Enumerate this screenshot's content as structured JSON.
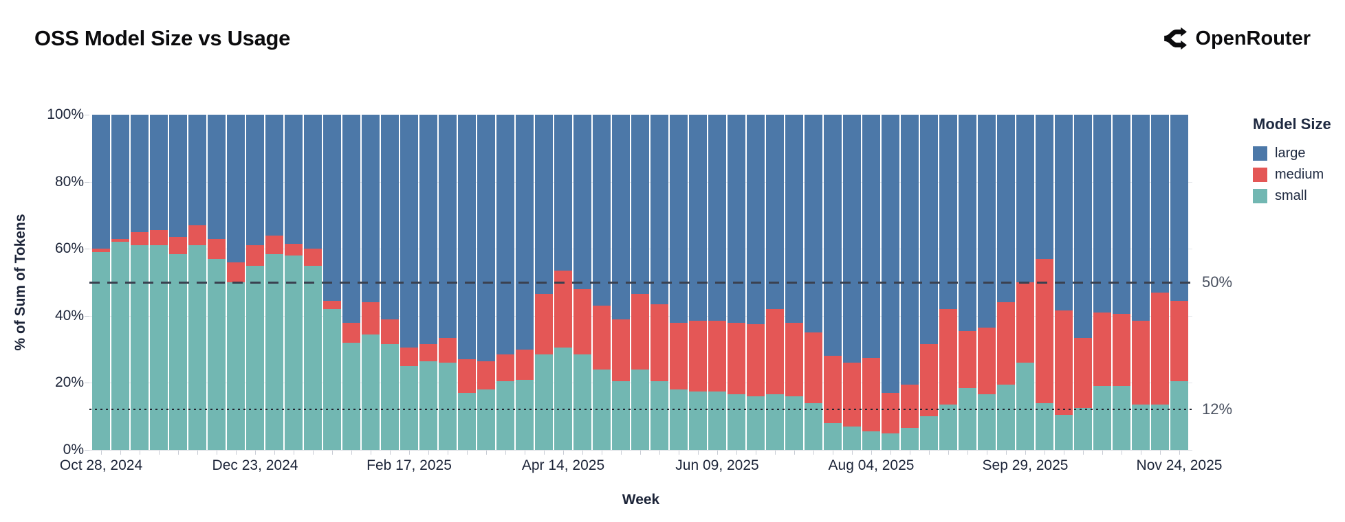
{
  "header": {
    "title": "OSS Model Size vs Usage",
    "brand": "OpenRouter"
  },
  "chart_data": {
    "type": "bar",
    "stacked": true,
    "normalized_percent": true,
    "title": "OSS Model Size vs Usage",
    "xlabel": "Week",
    "ylabel": "% of Sum of Tokens",
    "ylim": [
      0,
      100
    ],
    "grid": true,
    "y_ticks": [
      0,
      20,
      40,
      60,
      80,
      100
    ],
    "y_tick_suffix": "%",
    "x_label_every": 8,
    "x": [
      "Oct 28, 2024",
      "Nov 04, 2024",
      "Nov 11, 2024",
      "Nov 18, 2024",
      "Nov 25, 2024",
      "Dec 02, 2024",
      "Dec 09, 2024",
      "Dec 16, 2024",
      "Dec 23, 2024",
      "Dec 30, 2024",
      "Jan 06, 2025",
      "Jan 13, 2025",
      "Jan 20, 2025",
      "Jan 27, 2025",
      "Feb 03, 2025",
      "Feb 10, 2025",
      "Feb 17, 2025",
      "Feb 24, 2025",
      "Mar 03, 2025",
      "Mar 10, 2025",
      "Mar 17, 2025",
      "Mar 24, 2025",
      "Mar 31, 2025",
      "Apr 07, 2025",
      "Apr 14, 2025",
      "Apr 21, 2025",
      "Apr 28, 2025",
      "May 05, 2025",
      "May 12, 2025",
      "May 19, 2025",
      "May 26, 2025",
      "Jun 02, 2025",
      "Jun 09, 2025",
      "Jun 16, 2025",
      "Jun 23, 2025",
      "Jun 30, 2025",
      "Jul 07, 2025",
      "Jul 14, 2025",
      "Jul 21, 2025",
      "Jul 28, 2025",
      "Aug 04, 2025",
      "Aug 11, 2025",
      "Aug 18, 2025",
      "Aug 25, 2025",
      "Sep 01, 2025",
      "Sep 08, 2025",
      "Sep 15, 2025",
      "Sep 22, 2025",
      "Sep 29, 2025",
      "Oct 06, 2025",
      "Oct 13, 2025",
      "Oct 20, 2025",
      "Oct 27, 2025",
      "Nov 03, 2025",
      "Nov 10, 2025",
      "Nov 17, 2025",
      "Nov 24, 2025"
    ],
    "stack_order": [
      "small",
      "medium",
      "large"
    ],
    "series": [
      {
        "name": "small",
        "color": "#72b7b2",
        "values": [
          59,
          62,
          61,
          61,
          58.5,
          61,
          57,
          50,
          55,
          58.5,
          58,
          55,
          42,
          32,
          34.5,
          31.5,
          25,
          26.5,
          26,
          17,
          18,
          20.5,
          21,
          28.5,
          30.5,
          28.5,
          24,
          20.5,
          24,
          20.5,
          18,
          17.5,
          17.5,
          16.5,
          16,
          16.5,
          16,
          14,
          8,
          7,
          5.5,
          5,
          6.5,
          10,
          13.5,
          18.5,
          16.5,
          19.5,
          26,
          14,
          10.5,
          12.5,
          19,
          19,
          13.5,
          13.5,
          20.5
        ]
      },
      {
        "name": "medium",
        "color": "#e45756",
        "values": [
          1,
          1,
          4,
          4.5,
          5,
          6,
          6,
          6,
          6,
          5.5,
          3.5,
          5,
          2.5,
          6,
          9.5,
          7.5,
          5.5,
          5,
          7.5,
          10,
          8.5,
          8,
          9,
          18,
          23,
          19.5,
          19,
          18.5,
          22.5,
          23,
          20,
          21,
          21,
          21.5,
          21.5,
          25.5,
          22,
          21,
          20,
          19,
          22,
          12,
          13,
          21.5,
          28.5,
          17,
          20,
          24.5,
          24,
          43,
          31,
          21,
          22,
          21.5,
          25,
          33.5,
          24
        ]
      },
      {
        "name": "large",
        "color": "#4c78a8",
        "values": [
          40,
          37,
          35,
          34.5,
          36.5,
          33,
          37,
          44,
          39,
          36,
          38.5,
          40,
          55.5,
          62,
          56,
          61,
          69.5,
          68.5,
          66.5,
          73,
          73.5,
          71.5,
          70,
          53.5,
          46.5,
          52,
          57,
          61,
          53.5,
          56.5,
          62,
          61.5,
          61.5,
          62,
          62.5,
          58,
          62,
          65,
          72,
          74,
          72.5,
          83,
          80.5,
          68.5,
          58,
          64.5,
          63.5,
          56,
          50,
          43,
          58.5,
          66.5,
          59,
          59.5,
          61.5,
          53,
          55.5
        ]
      }
    ],
    "legend": {
      "title": "Model Size",
      "position": "top-right",
      "order": [
        "large",
        "medium",
        "small"
      ]
    },
    "reference_lines": [
      {
        "value": 50,
        "label": "50%",
        "style": "dashed"
      },
      {
        "value": 12,
        "label": "12%",
        "style": "dotted"
      }
    ]
  }
}
